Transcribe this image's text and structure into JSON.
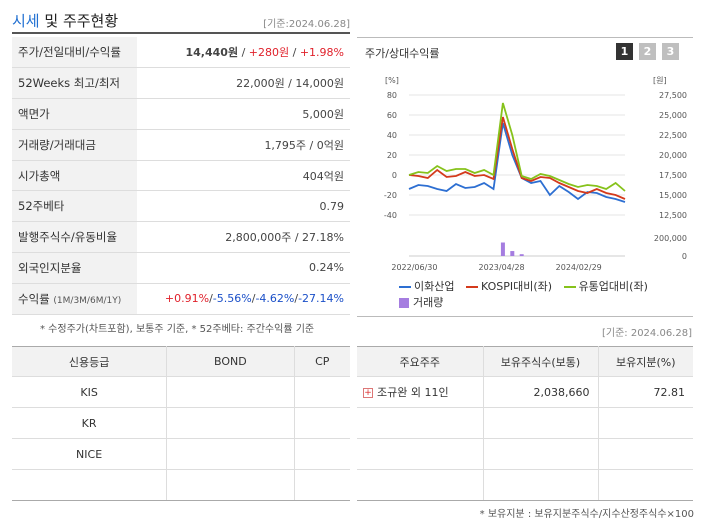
{
  "header": {
    "title_accent": "시세",
    "title_rest": " 및 주주현황",
    "date": "[기준:2024.06.28]"
  },
  "info_rows": {
    "r0": {
      "label": "주가/전일대비/수익률",
      "price": "14,440원",
      "sep1": " / ",
      "change": "+280원",
      "sep2": " / ",
      "rate": "+1.98%"
    },
    "r1": {
      "label": "52Weeks 최고/최저",
      "value": "22,000원 / 14,000원"
    },
    "r2": {
      "label": "액면가",
      "value": "5,000원"
    },
    "r3": {
      "label": "거래량/거래대금",
      "value": "1,795주 / 0억원"
    },
    "r4": {
      "label": "시가총액",
      "value": "404억원"
    },
    "r5": {
      "label": "52주베타",
      "value": "0.79"
    },
    "r6": {
      "label": "발행주식수/유동비율",
      "value": "2,800,000주 / 27.18%"
    },
    "r7": {
      "label": "외국인지분율",
      "value": "0.24%"
    },
    "r8": {
      "label": "수익률",
      "label_sub": "(1M/3M/6M/1Y)",
      "v1": "+0.91%",
      "v2": "-5.56%",
      "v3": "-4.62%",
      "v4": "-27.14%",
      "sep": "/"
    }
  },
  "note_left": "* 수정주가(차트포함), 보통주 기준, * 52주베타: 주간수익률 기준",
  "chart_panel": {
    "title": "주가/상대수익률",
    "tabs": [
      "1",
      "2",
      "3"
    ],
    "date": "[기준: 2024.06.28]"
  },
  "chart_data": {
    "type": "line",
    "left_axis_unit": "[%]",
    "right_axis_unit": "[원]",
    "left_ticks": [
      "80",
      "60",
      "40",
      "20",
      "0",
      "-20",
      "-40"
    ],
    "right_ticks": [
      "27,500",
      "25,000",
      "22,500",
      "20,000",
      "17,500",
      "15,000",
      "12,500"
    ],
    "volume_ticks": [
      "200,000",
      "0"
    ],
    "x_ticks": [
      "2022/06/30",
      "2023/04/28",
      "2024/02/29"
    ],
    "series": [
      {
        "name": "이화산업",
        "color": "#2d6fd2",
        "values": [
          -14,
          -10,
          -11,
          -14,
          -16,
          -9,
          -13,
          -12,
          -8,
          -14,
          52,
          20,
          -3,
          -8,
          -6,
          -20,
          -11,
          -17,
          -24,
          -17,
          -18,
          -22,
          -24,
          -27
        ]
      },
      {
        "name": "KOSPI대비(좌)",
        "color": "#d43a1c",
        "values": [
          0,
          -1,
          -3,
          5,
          -2,
          -1,
          3,
          -1,
          0,
          -4,
          58,
          26,
          -3,
          -6,
          -2,
          -3,
          -8,
          -12,
          -16,
          -18,
          -14,
          -18,
          -20,
          -24
        ]
      },
      {
        "name": "유통업대비(좌)",
        "color": "#86c21b",
        "values": [
          0,
          3,
          2,
          9,
          4,
          6,
          6,
          2,
          5,
          0,
          72,
          40,
          -1,
          -4,
          1,
          -1,
          -5,
          -9,
          -12,
          -10,
          -11,
          -14,
          -8,
          -16
        ]
      }
    ],
    "volume": {
      "name": "거래량",
      "color": "#a57de0",
      "values": [
        0,
        0,
        0,
        0,
        0,
        0,
        0,
        0,
        0,
        0,
        150000,
        55000,
        20000,
        0,
        0,
        0,
        0,
        0,
        0,
        0,
        0,
        0,
        0,
        0
      ]
    },
    "ylim_left": [
      -40,
      80
    ],
    "ylim_volume": [
      0,
      200000
    ]
  },
  "credit": {
    "headers": [
      "신용등급",
      "BOND",
      "CP"
    ],
    "rows": [
      [
        "KIS",
        "",
        ""
      ],
      [
        "KR",
        "",
        ""
      ],
      [
        "NICE",
        "",
        ""
      ],
      [
        "",
        "",
        ""
      ]
    ]
  },
  "holders": {
    "headers": [
      "주요주주",
      "보유주식수(보통)",
      "보유지분(%)"
    ],
    "rows": [
      [
        "조규완 외 11인",
        "2,038,660",
        "72.81"
      ],
      [
        "",
        "",
        ""
      ],
      [
        "",
        "",
        ""
      ],
      [
        "",
        "",
        ""
      ]
    ]
  },
  "note_right": "* 보유지분 : 보유지분주식수/지수산정주식수×100"
}
